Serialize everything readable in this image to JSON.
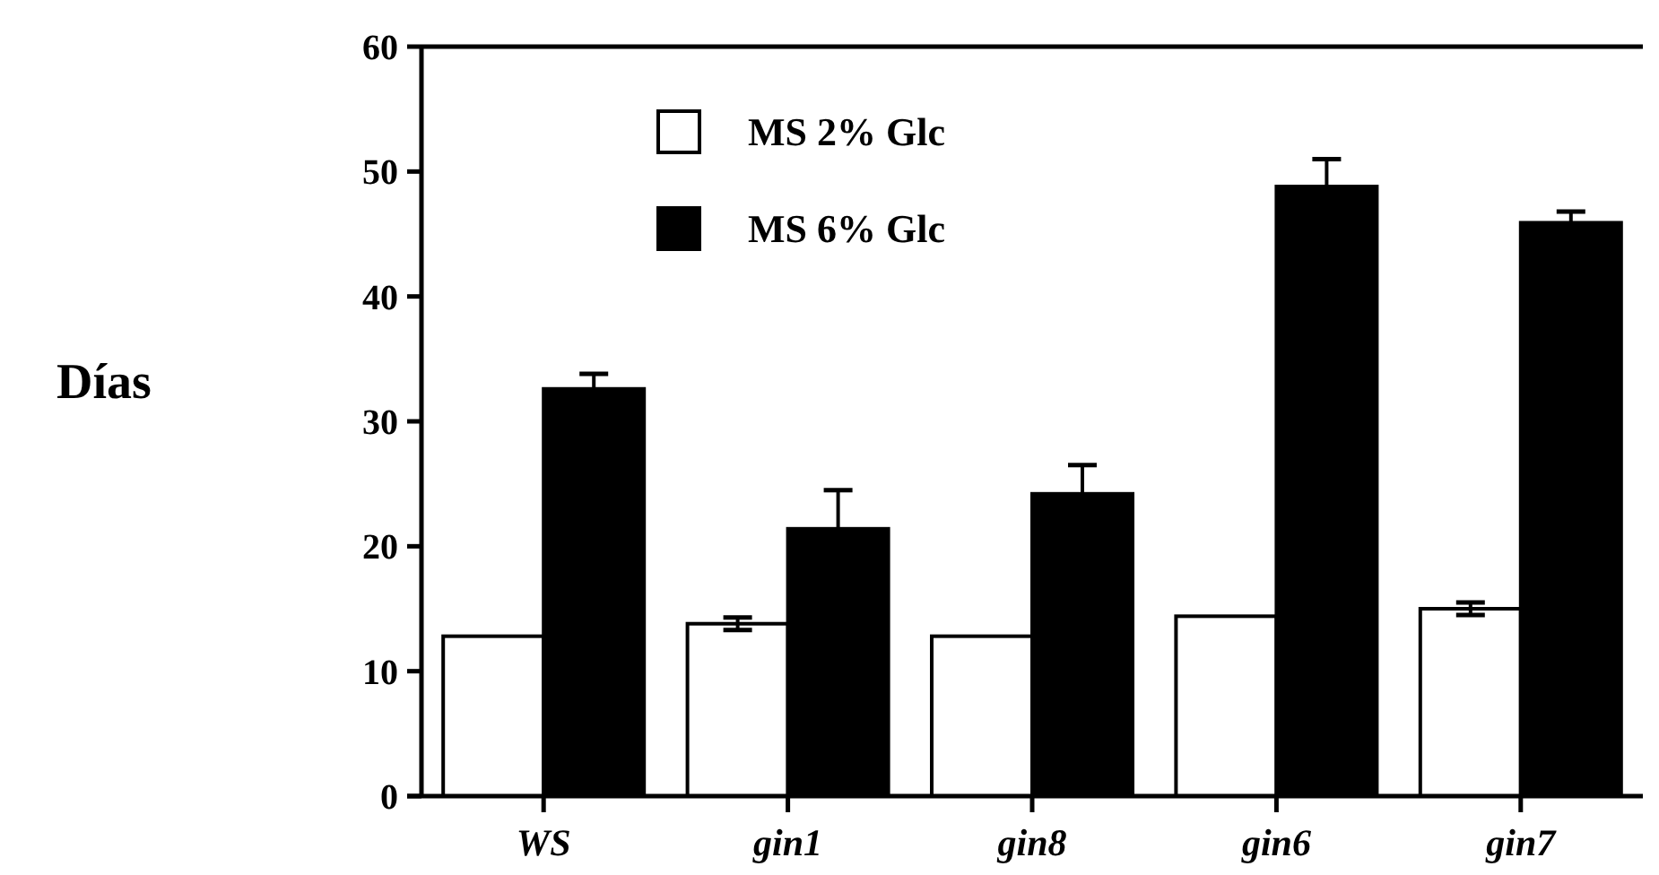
{
  "chart_data": {
    "type": "bar",
    "ylabel": "Días",
    "categories": [
      "WS",
      "gin1",
      "gin8",
      "gin6",
      "gin7"
    ],
    "series": [
      {
        "name": "MS 2% Glc",
        "color": "#ffffff",
        "values": [
          12.8,
          13.8,
          12.8,
          14.4,
          15.0
        ],
        "errors": [
          null,
          0.5,
          null,
          null,
          0.5
        ]
      },
      {
        "name": "MS 6% Glc",
        "color": "#000000",
        "values": [
          32.6,
          21.4,
          24.2,
          48.8,
          45.9
        ],
        "errors": [
          1.2,
          3.1,
          2.3,
          2.2,
          0.9
        ]
      }
    ],
    "ylim": [
      0,
      60
    ],
    "yticks": [
      0,
      10,
      20,
      30,
      40,
      50,
      60
    ],
    "legend": "top left"
  }
}
